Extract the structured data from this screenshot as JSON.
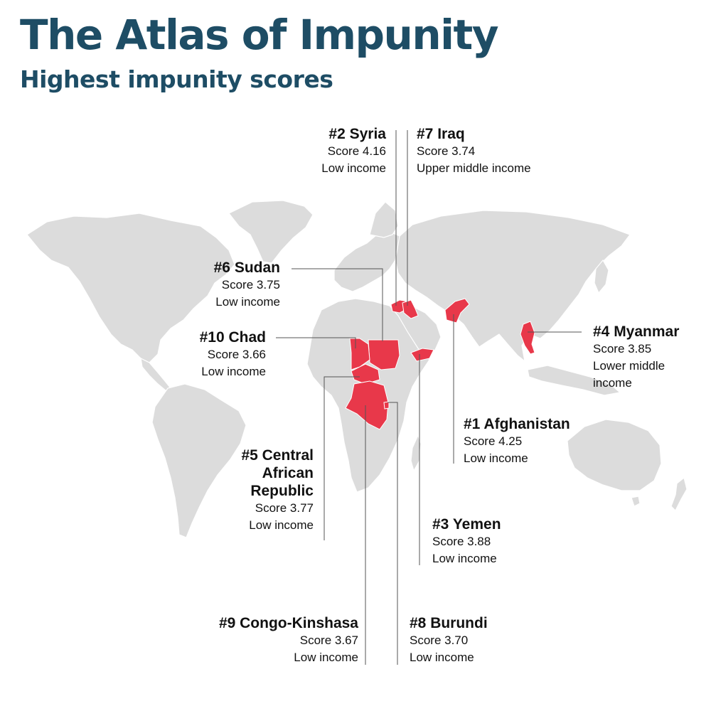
{
  "header": {
    "title": "The Atlas of Impunity",
    "subtitle": "Highest impunity scores"
  },
  "colors": {
    "highlight": "#e8384a",
    "land": "#dcdcdc",
    "title": "#1e4d65",
    "leader": "#555555"
  },
  "countries": [
    {
      "id": "syria",
      "name": "#2 Syria",
      "score": "Score 4.16",
      "income": "Low income"
    },
    {
      "id": "iraq",
      "name": "#7 Iraq",
      "score": "Score 3.74",
      "income": "Upper middle income"
    },
    {
      "id": "sudan",
      "name": "#6 Sudan",
      "score": "Score 3.75",
      "income": "Low income"
    },
    {
      "id": "chad",
      "name": "#10 Chad",
      "score": "Score 3.66",
      "income": "Low income"
    },
    {
      "id": "myanmar",
      "name": "#4 Myanmar",
      "score": "Score 3.85",
      "income": "Lower middle",
      "income2": "income"
    },
    {
      "id": "afghanistan",
      "name": "#1 Afghanistan",
      "score": "Score 4.25",
      "income": "Low income"
    },
    {
      "id": "car",
      "name": "#5 Central",
      "name2": "African",
      "name3": "Republic",
      "score": "Score 3.77",
      "income": "Low income"
    },
    {
      "id": "yemen",
      "name": "#3 Yemen",
      "score": "Score 3.88",
      "income": "Low income"
    },
    {
      "id": "congo",
      "name": "#9 Congo-Kinshasa",
      "score": "Score 3.67",
      "income": "Low income"
    },
    {
      "id": "burundi",
      "name": "#8 Burundi",
      "score": "Score 3.70",
      "income": "Low income"
    }
  ]
}
